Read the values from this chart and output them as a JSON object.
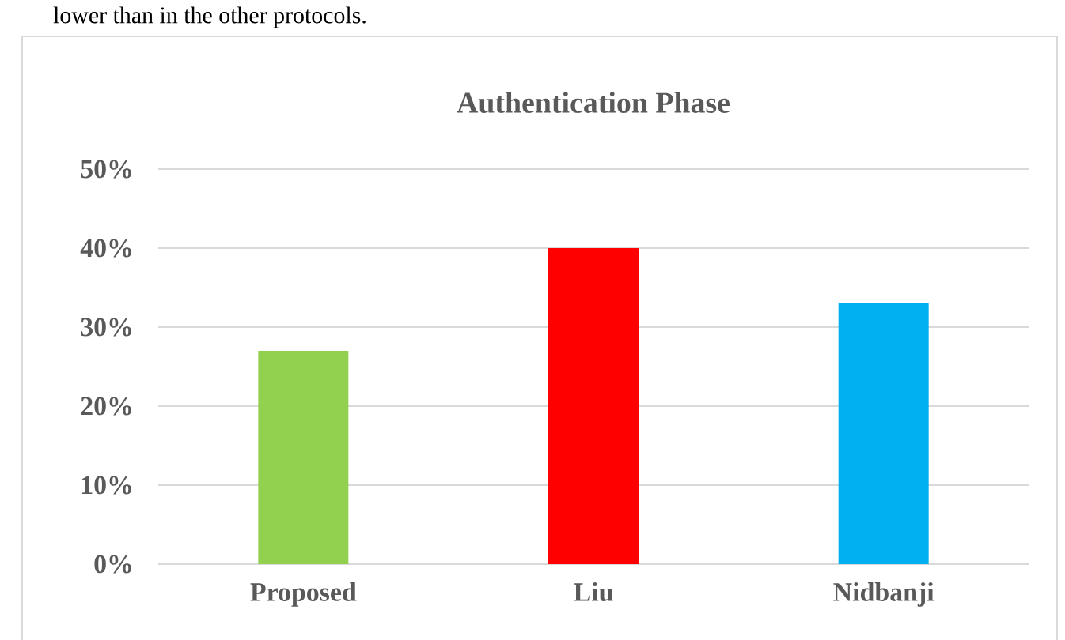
{
  "chart_data": {
    "type": "bar",
    "title": "Authentication Phase",
    "categories": [
      "Proposed",
      "Liu",
      "Nidbanji"
    ],
    "values": [
      27,
      40,
      33
    ],
    "colors": [
      "#92d050",
      "#ff0000",
      "#00b0f0"
    ],
    "ylim": [
      0,
      50
    ],
    "yticks": [
      {
        "value": 0,
        "label": "0%"
      },
      {
        "value": 10,
        "label": "10%"
      },
      {
        "value": 20,
        "label": "20%"
      },
      {
        "value": 30,
        "label": "30%"
      },
      {
        "value": 40,
        "label": "40%"
      },
      {
        "value": 50,
        "label": "50%"
      }
    ],
    "grid": "y",
    "annotations": [
      "lower than in the other protocols."
    ]
  }
}
